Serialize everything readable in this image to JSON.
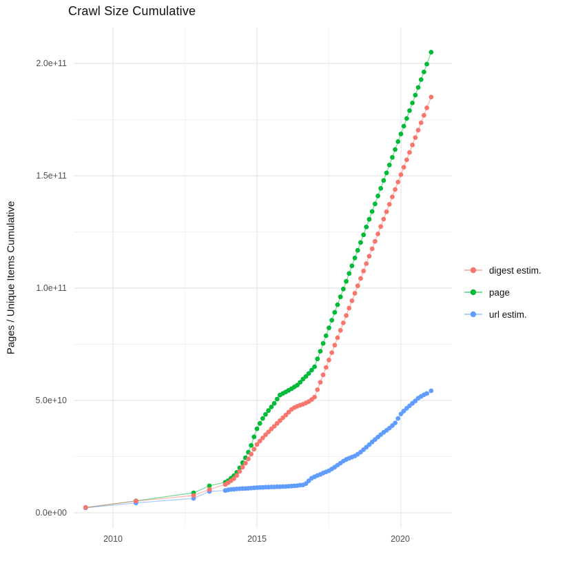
{
  "title": "Crawl Size Cumulative",
  "y_axis": {
    "label": "Pages / Unique Items Cumulative",
    "ticks": [
      "0.0e+00",
      "5.0e+10",
      "1.0e+11",
      "1.5e+11",
      "2.0e+11"
    ]
  },
  "x_axis": {
    "ticks": [
      "2010",
      "2015",
      "2020"
    ]
  },
  "legend": {
    "items": [
      {
        "label": "digest estim.",
        "color": "#F8766D"
      },
      {
        "label": "page",
        "color": "#00BA38"
      },
      {
        "label": "url estim.",
        "color": "#619CFF"
      }
    ]
  },
  "chart_data": {
    "type": "line",
    "title": "Crawl Size Cumulative",
    "xlabel": "",
    "ylabel": "Pages / Unique Items Cumulative",
    "y_unit": "value in billions (1e9)",
    "x_unit": "year",
    "xlim": [
      2008.65,
      2021.75
    ],
    "ylim_e9": [
      -7,
      216
    ],
    "x_ticks": [
      2010,
      2015,
      2020
    ],
    "x_minor_ticks": [
      2012.5,
      2017.5
    ],
    "y_ticks_e9": [
      0,
      50,
      100,
      150,
      200
    ],
    "y_minor_ticks_e9": [
      25,
      75,
      125,
      175
    ],
    "y_tick_labels": [
      "0.0e+00",
      "5.0e+10",
      "1.0e+11",
      "1.5e+11",
      "2.0e+11"
    ],
    "grid": true,
    "legend_position": "right",
    "marker": "circle",
    "series": [
      {
        "name": "digest estim.",
        "color": "#F8766D",
        "points": [
          [
            2009.05,
            2.4
          ],
          [
            2010.8,
            5.2
          ],
          [
            2012.8,
            7.7
          ],
          [
            2013.35,
            10.4
          ],
          [
            2013.9,
            12.6
          ],
          [
            2014,
            13.4
          ],
          [
            2014.1,
            14.3
          ],
          [
            2014.2,
            15.2
          ],
          [
            2014.3,
            16.6
          ],
          [
            2014.4,
            18.4
          ],
          [
            2014.5,
            20.3
          ],
          [
            2014.6,
            22.1
          ],
          [
            2014.7,
            24
          ],
          [
            2014.8,
            26.1
          ],
          [
            2014.9,
            28.3
          ],
          [
            2015,
            30.4
          ],
          [
            2015.1,
            31.9
          ],
          [
            2015.2,
            33.3
          ],
          [
            2015.3,
            34.7
          ],
          [
            2015.4,
            36
          ],
          [
            2015.5,
            37.3
          ],
          [
            2015.6,
            38.5
          ],
          [
            2015.7,
            39.8
          ],
          [
            2015.8,
            41
          ],
          [
            2015.9,
            42.3
          ],
          [
            2016,
            43.5
          ],
          [
            2016.1,
            44.8
          ],
          [
            2016.2,
            46
          ],
          [
            2016.3,
            46.8
          ],
          [
            2016.4,
            47.4
          ],
          [
            2016.5,
            47.9
          ],
          [
            2016.6,
            48.3
          ],
          [
            2016.7,
            48.9
          ],
          [
            2016.8,
            49.5
          ],
          [
            2016.9,
            50.4
          ],
          [
            2017,
            51.5
          ],
          [
            2017.1,
            54.8
          ],
          [
            2017.2,
            58.1
          ],
          [
            2017.3,
            61.4
          ],
          [
            2017.4,
            64.7
          ],
          [
            2017.5,
            68
          ],
          [
            2017.6,
            71.3
          ],
          [
            2017.7,
            74.6
          ],
          [
            2017.8,
            77.9
          ],
          [
            2017.9,
            81.2
          ],
          [
            2018,
            84.5
          ],
          [
            2018.1,
            87.8
          ],
          [
            2018.2,
            91.1
          ],
          [
            2018.3,
            94.4
          ],
          [
            2018.4,
            97.7
          ],
          [
            2018.5,
            101
          ],
          [
            2018.6,
            104.3
          ],
          [
            2018.7,
            107.6
          ],
          [
            2018.8,
            110.9
          ],
          [
            2018.9,
            114.2
          ],
          [
            2019,
            117.5
          ],
          [
            2019.1,
            120.8
          ],
          [
            2019.2,
            124.1
          ],
          [
            2019.3,
            127.4
          ],
          [
            2019.4,
            130.7
          ],
          [
            2019.5,
            134
          ],
          [
            2019.6,
            137.3
          ],
          [
            2019.7,
            140.6
          ],
          [
            2019.8,
            143.9
          ],
          [
            2019.9,
            147.2
          ],
          [
            2020,
            150.5
          ],
          [
            2020.1,
            153.8
          ],
          [
            2020.2,
            157.1
          ],
          [
            2020.3,
            160.4
          ],
          [
            2020.4,
            163.7
          ],
          [
            2020.5,
            167
          ],
          [
            2020.6,
            170.3
          ],
          [
            2020.7,
            173.6
          ],
          [
            2020.8,
            176.9
          ],
          [
            2020.9,
            180.2
          ],
          [
            2021.05,
            185
          ]
        ]
      },
      {
        "name": "page",
        "color": "#00BA38",
        "points": [
          [
            2009.05,
            2.3
          ],
          [
            2010.8,
            5.3
          ],
          [
            2012.8,
            8.9
          ],
          [
            2013.35,
            12
          ],
          [
            2013.9,
            13.6
          ],
          [
            2014,
            14.3
          ],
          [
            2014.1,
            15.4
          ],
          [
            2014.2,
            16.5
          ],
          [
            2014.3,
            18
          ],
          [
            2014.4,
            20
          ],
          [
            2014.5,
            22.3
          ],
          [
            2014.6,
            24.5
          ],
          [
            2014.7,
            27
          ],
          [
            2014.8,
            30
          ],
          [
            2014.9,
            33.8
          ],
          [
            2015,
            37.4
          ],
          [
            2015.1,
            39.8
          ],
          [
            2015.2,
            42
          ],
          [
            2015.3,
            43.8
          ],
          [
            2015.4,
            45.5
          ],
          [
            2015.5,
            47.1
          ],
          [
            2015.6,
            48.7
          ],
          [
            2015.7,
            50.6
          ],
          [
            2015.8,
            52.4
          ],
          [
            2015.9,
            53.1
          ],
          [
            2016,
            53.8
          ],
          [
            2016.1,
            54.5
          ],
          [
            2016.2,
            55.2
          ],
          [
            2016.3,
            56
          ],
          [
            2016.4,
            56.8
          ],
          [
            2016.5,
            58.1
          ],
          [
            2016.6,
            59.5
          ],
          [
            2016.7,
            60.7
          ],
          [
            2016.8,
            62
          ],
          [
            2016.9,
            63.5
          ],
          [
            2017,
            65
          ],
          [
            2017.1,
            68.5
          ],
          [
            2017.2,
            71.9
          ],
          [
            2017.3,
            75.4
          ],
          [
            2017.4,
            78.8
          ],
          [
            2017.5,
            82.3
          ],
          [
            2017.6,
            85.7
          ],
          [
            2017.7,
            89.2
          ],
          [
            2017.8,
            92.6
          ],
          [
            2017.9,
            96.1
          ],
          [
            2018,
            99.6
          ],
          [
            2018.1,
            103
          ],
          [
            2018.2,
            106.5
          ],
          [
            2018.3,
            109.9
          ],
          [
            2018.4,
            113.4
          ],
          [
            2018.5,
            116.8
          ],
          [
            2018.6,
            120.3
          ],
          [
            2018.7,
            123.7
          ],
          [
            2018.8,
            127.2
          ],
          [
            2018.9,
            130.6
          ],
          [
            2019,
            134.1
          ],
          [
            2019.1,
            137.5
          ],
          [
            2019.2,
            141
          ],
          [
            2019.3,
            144.4
          ],
          [
            2019.4,
            147.9
          ],
          [
            2019.5,
            151.3
          ],
          [
            2019.6,
            154.8
          ],
          [
            2019.7,
            158.2
          ],
          [
            2019.8,
            161.7
          ],
          [
            2019.9,
            165.2
          ],
          [
            2020,
            168.6
          ],
          [
            2020.1,
            172.1
          ],
          [
            2020.2,
            175.5
          ],
          [
            2020.3,
            179
          ],
          [
            2020.4,
            182.4
          ],
          [
            2020.5,
            185.9
          ],
          [
            2020.6,
            189.3
          ],
          [
            2020.7,
            192.8
          ],
          [
            2020.8,
            196.2
          ],
          [
            2020.9,
            199.7
          ],
          [
            2021.05,
            205
          ]
        ]
      },
      {
        "name": "url estim.",
        "color": "#619CFF",
        "points": [
          [
            2009.05,
            2.2
          ],
          [
            2010.8,
            4.4
          ],
          [
            2012.8,
            6.4
          ],
          [
            2013.35,
            9.5
          ],
          [
            2013.9,
            9.9
          ],
          [
            2014,
            10.2
          ],
          [
            2014.1,
            10.4
          ],
          [
            2014.2,
            10.5
          ],
          [
            2014.3,
            10.6
          ],
          [
            2014.4,
            10.7
          ],
          [
            2014.5,
            10.8
          ],
          [
            2014.6,
            10.8
          ],
          [
            2014.7,
            10.9
          ],
          [
            2014.8,
            11
          ],
          [
            2014.9,
            11.1
          ],
          [
            2015,
            11.2
          ],
          [
            2015.1,
            11.3
          ],
          [
            2015.2,
            11.3
          ],
          [
            2015.3,
            11.4
          ],
          [
            2015.4,
            11.4
          ],
          [
            2015.5,
            11.5
          ],
          [
            2015.6,
            11.5
          ],
          [
            2015.7,
            11.6
          ],
          [
            2015.8,
            11.6
          ],
          [
            2015.9,
            11.7
          ],
          [
            2016,
            11.7
          ],
          [
            2016.1,
            11.8
          ],
          [
            2016.2,
            11.9
          ],
          [
            2016.3,
            12
          ],
          [
            2016.4,
            12.1
          ],
          [
            2016.5,
            12.3
          ],
          [
            2016.6,
            12.4
          ],
          [
            2016.7,
            13
          ],
          [
            2016.8,
            14.2
          ],
          [
            2016.9,
            15.4
          ],
          [
            2017,
            16
          ],
          [
            2017.1,
            16.6
          ],
          [
            2017.2,
            17.1
          ],
          [
            2017.3,
            17.7
          ],
          [
            2017.4,
            18.2
          ],
          [
            2017.5,
            18.7
          ],
          [
            2017.6,
            19.5
          ],
          [
            2017.7,
            20.3
          ],
          [
            2017.8,
            21.2
          ],
          [
            2017.9,
            22.1
          ],
          [
            2018,
            23
          ],
          [
            2018.1,
            23.7
          ],
          [
            2018.2,
            24.3
          ],
          [
            2018.3,
            24.8
          ],
          [
            2018.4,
            25.3
          ],
          [
            2018.5,
            26.1
          ],
          [
            2018.6,
            27
          ],
          [
            2018.7,
            28.1
          ],
          [
            2018.8,
            29.2
          ],
          [
            2018.9,
            30.3
          ],
          [
            2019,
            31.5
          ],
          [
            2019.1,
            32.6
          ],
          [
            2019.2,
            33.7
          ],
          [
            2019.3,
            34.8
          ],
          [
            2019.4,
            35.8
          ],
          [
            2019.5,
            36.7
          ],
          [
            2019.6,
            37.7
          ],
          [
            2019.7,
            38.8
          ],
          [
            2019.8,
            40
          ],
          [
            2019.9,
            42
          ],
          [
            2020,
            44
          ],
          [
            2020.1,
            45.3
          ],
          [
            2020.2,
            46.5
          ],
          [
            2020.3,
            47.6
          ],
          [
            2020.4,
            48.7
          ],
          [
            2020.5,
            49.8
          ],
          [
            2020.6,
            51
          ],
          [
            2020.7,
            51.8
          ],
          [
            2020.8,
            52.5
          ],
          [
            2020.9,
            53.1
          ],
          [
            2021.05,
            54.3
          ]
        ]
      }
    ]
  }
}
